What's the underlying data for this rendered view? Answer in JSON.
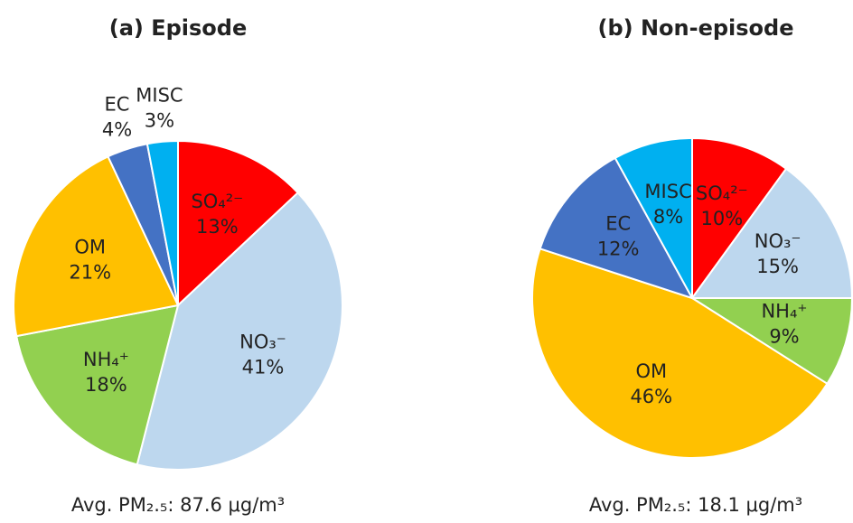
{
  "chart_data": [
    {
      "type": "pie",
      "title": "(a) Episode",
      "categories": [
        "SO₄²⁻",
        "NO₃⁻",
        "NH₄⁺",
        "OM",
        "EC",
        "MISC"
      ],
      "values": [
        13,
        41,
        18,
        21,
        4,
        3
      ],
      "value_labels": [
        "13%",
        "41%",
        "18%",
        "21%",
        "4%",
        "3%"
      ],
      "colors": [
        "#ff0000",
        "#bdd7ee",
        "#92d050",
        "#ffc000",
        "#4472c4",
        "#00b0f0"
      ],
      "footnote": "Avg. PM₂.₅: 87.6 μg/m³"
    },
    {
      "type": "pie",
      "title": "(b) Non-episode",
      "categories": [
        "SO₄²⁻",
        "NO₃⁻",
        "NH₄⁺",
        "OM",
        "EC",
        "MISC"
      ],
      "values": [
        10,
        15,
        9,
        46,
        12,
        8
      ],
      "value_labels": [
        "10%",
        "15%",
        "9%",
        "46%",
        "12%",
        "8%"
      ],
      "colors": [
        "#ff0000",
        "#bdd7ee",
        "#92d050",
        "#ffc000",
        "#4472c4",
        "#00b0f0"
      ],
      "footnote": "Avg. PM₂.₅: 18.1 μg/m³"
    }
  ]
}
